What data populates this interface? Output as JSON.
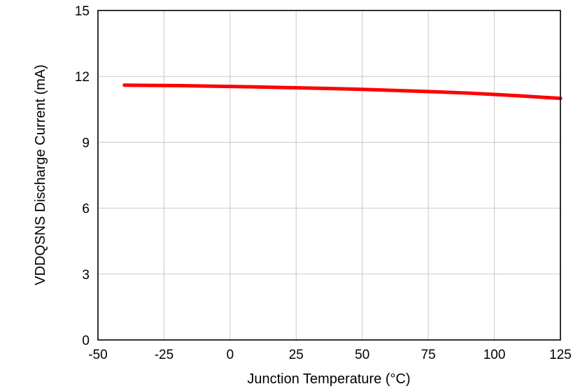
{
  "figure": {
    "background_color": "#ffffff",
    "plot_border_color": "#000000",
    "grid_color": "#c8c8c8"
  },
  "chart_data": {
    "type": "line",
    "title": "",
    "xlabel": "Junction Temperature (°C)",
    "ylabel": "VDDQSNS Discharge Current (mA)",
    "xlim": [
      -50,
      125
    ],
    "ylim": [
      0,
      15
    ],
    "xticks": [
      -50,
      -25,
      0,
      25,
      50,
      75,
      100,
      125
    ],
    "yticks": [
      0,
      3,
      6,
      9,
      12,
      15
    ],
    "grid": true,
    "legend_position": "none",
    "series": [
      {
        "name": "VDDQSNS Discharge Current",
        "color": "#ff0000",
        "line_width": 5,
        "x": [
          -40,
          -30,
          -20,
          -10,
          0,
          10,
          25,
          40,
          50,
          60,
          75,
          90,
          100,
          110,
          125
        ],
        "y": [
          11.6,
          11.59,
          11.58,
          11.56,
          11.54,
          11.52,
          11.48,
          11.44,
          11.41,
          11.37,
          11.31,
          11.24,
          11.18,
          11.11,
          11.0
        ]
      }
    ]
  }
}
